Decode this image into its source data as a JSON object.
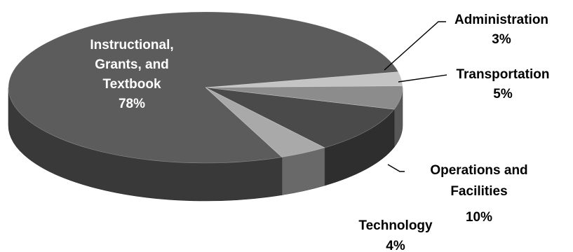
{
  "chart_data": {
    "type": "pie",
    "style": "3d",
    "title": "",
    "legend": "none",
    "slices": [
      {
        "label": "Administration",
        "value": 3,
        "value_label": "3%",
        "color": "#c4c4c4"
      },
      {
        "label": "Transportation",
        "value": 5,
        "value_label": "5%",
        "color": "#8c8c8c"
      },
      {
        "label": "Operations and Facilities",
        "value": 10,
        "value_label": "10%",
        "color": "#4a4a4a"
      },
      {
        "label": "Technology",
        "value": 4,
        "value_label": "4%",
        "color": "#a9a9a9"
      },
      {
        "label": "Instructional, Grants, and Textbook",
        "value": 78,
        "value_label": "78%",
        "color": "#5c5c5c"
      }
    ],
    "label_text_color": "#000000",
    "inside_label_color": "#ffffff"
  }
}
